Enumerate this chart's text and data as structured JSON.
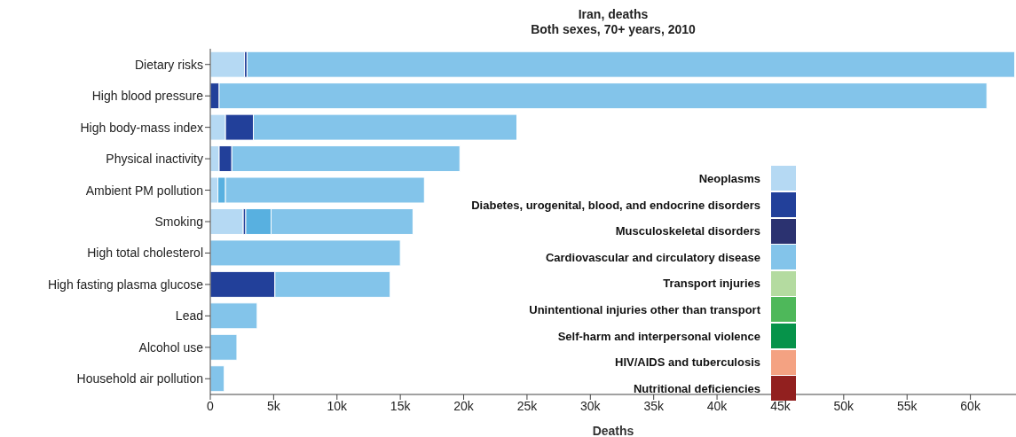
{
  "chart_data": {
    "type": "bar",
    "orientation": "horizontal",
    "stacked": true,
    "title": "Iran, deaths",
    "subtitle": "Both sexes, 70+ years, 2010",
    "xlabel": "Deaths",
    "categories": [
      "Dietary risks",
      "High blood pressure",
      "High body-mass index",
      "Physical inactivity",
      "Ambient PM pollution",
      "Smoking",
      "High total cholesterol",
      "High fasting plasma glucose",
      "Lead",
      "Alcohol use",
      "Household air pollution"
    ],
    "series": [
      {
        "name": "Neoplasms",
        "color": "#b5d9f3",
        "values": [
          2700,
          null,
          1200,
          700,
          600,
          2600,
          null,
          null,
          null,
          null,
          null
        ]
      },
      {
        "name": "Diabetes, urogenital, blood, and endocrine disorders",
        "color": "#22409a",
        "values": [
          200,
          700,
          2200,
          1000,
          null,
          200,
          null,
          5100,
          null,
          null,
          null
        ]
      },
      {
        "name": "Musculoskeletal disorders",
        "color": "#2b3270",
        "values": [
          null,
          null,
          null,
          null,
          null,
          null,
          null,
          null,
          null,
          null,
          null
        ]
      },
      {
        "color": "#58b0e0",
        "values": [
          null,
          null,
          null,
          null,
          600,
          2000,
          null,
          null,
          null,
          null,
          null
        ]
      },
      {
        "name": "Cardiovascular and circulatory disease",
        "color": "#83c4ea",
        "values": [
          60600,
          60600,
          20800,
          18000,
          15700,
          11200,
          15000,
          9100,
          3700,
          2100,
          1100
        ]
      },
      {
        "name": "Transport injuries",
        "color": "#b4dba0",
        "values": [
          null,
          null,
          null,
          null,
          null,
          null,
          null,
          null,
          null,
          null,
          null
        ]
      },
      {
        "name": "Unintentional injuries other than transport",
        "color": "#4eb85a",
        "values": [
          null,
          null,
          null,
          null,
          null,
          null,
          null,
          null,
          null,
          null,
          null
        ]
      },
      {
        "name": "Self-harm and interpersonal violence",
        "color": "#06934a",
        "values": [
          null,
          null,
          null,
          null,
          null,
          null,
          null,
          null,
          null,
          null,
          null
        ]
      },
      {
        "name": "HIV/AIDS and tuberculosis",
        "color": "#f4a282",
        "values": [
          null,
          null,
          null,
          null,
          null,
          null,
          null,
          null,
          null,
          null,
          null
        ]
      },
      {
        "name": "Nutritional deficiencies",
        "color": "#92201f",
        "values": [
          null,
          null,
          null,
          null,
          null,
          null,
          null,
          null,
          null,
          null,
          null
        ]
      }
    ],
    "xlim": [
      0,
      63600
    ],
    "xticks": [
      0,
      {
        "value": 5000,
        "label": "5k"
      },
      {
        "value": 10000,
        "label": "10k"
      },
      {
        "value": 15000,
        "label": "15k"
      },
      {
        "value": 20000,
        "label": "20k"
      },
      {
        "value": 25000,
        "label": "25k"
      },
      {
        "value": 30000,
        "label": "30k"
      },
      {
        "value": 35000,
        "label": "35k"
      },
      {
        "value": 40000,
        "label": "40k"
      },
      {
        "value": 45000,
        "label": "45k"
      },
      {
        "value": 50000,
        "label": "50k"
      },
      {
        "value": 55000,
        "label": "55k"
      },
      {
        "value": 60000,
        "label": "60k"
      }
    ],
    "legend": "bottom right",
    "grid": false
  }
}
